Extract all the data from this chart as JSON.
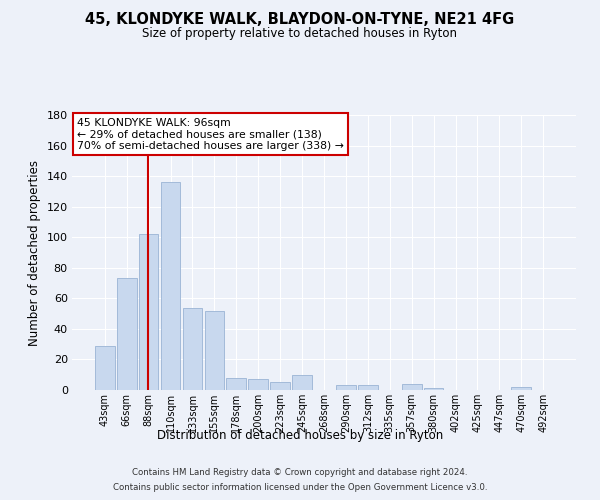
{
  "title": "45, KLONDYKE WALK, BLAYDON-ON-TYNE, NE21 4FG",
  "subtitle": "Size of property relative to detached houses in Ryton",
  "xlabel": "Distribution of detached houses by size in Ryton",
  "ylabel": "Number of detached properties",
  "bar_labels": [
    "43sqm",
    "66sqm",
    "88sqm",
    "110sqm",
    "133sqm",
    "155sqm",
    "178sqm",
    "200sqm",
    "223sqm",
    "245sqm",
    "268sqm",
    "290sqm",
    "312sqm",
    "335sqm",
    "357sqm",
    "380sqm",
    "402sqm",
    "425sqm",
    "447sqm",
    "470sqm",
    "492sqm"
  ],
  "bar_values": [
    29,
    73,
    102,
    136,
    54,
    52,
    8,
    7,
    5,
    10,
    0,
    3,
    3,
    0,
    4,
    1,
    0,
    0,
    0,
    2,
    0
  ],
  "bar_color": "#c8d8ee",
  "bar_edge_color": "#9ab4d4",
  "ylim": [
    0,
    180
  ],
  "yticks": [
    0,
    20,
    40,
    60,
    80,
    100,
    120,
    140,
    160,
    180
  ],
  "vline_color": "#cc0000",
  "annotation_title": "45 KLONDYKE WALK: 96sqm",
  "annotation_line1": "← 29% of detached houses are smaller (138)",
  "annotation_line2": "70% of semi-detached houses are larger (338) →",
  "annotation_box_color": "#cc0000",
  "bg_color": "#edf1f9",
  "plot_bg_color": "#edf1f9",
  "grid_color": "#ffffff",
  "footer_line1": "Contains HM Land Registry data © Crown copyright and database right 2024.",
  "footer_line2": "Contains public sector information licensed under the Open Government Licence v3.0."
}
